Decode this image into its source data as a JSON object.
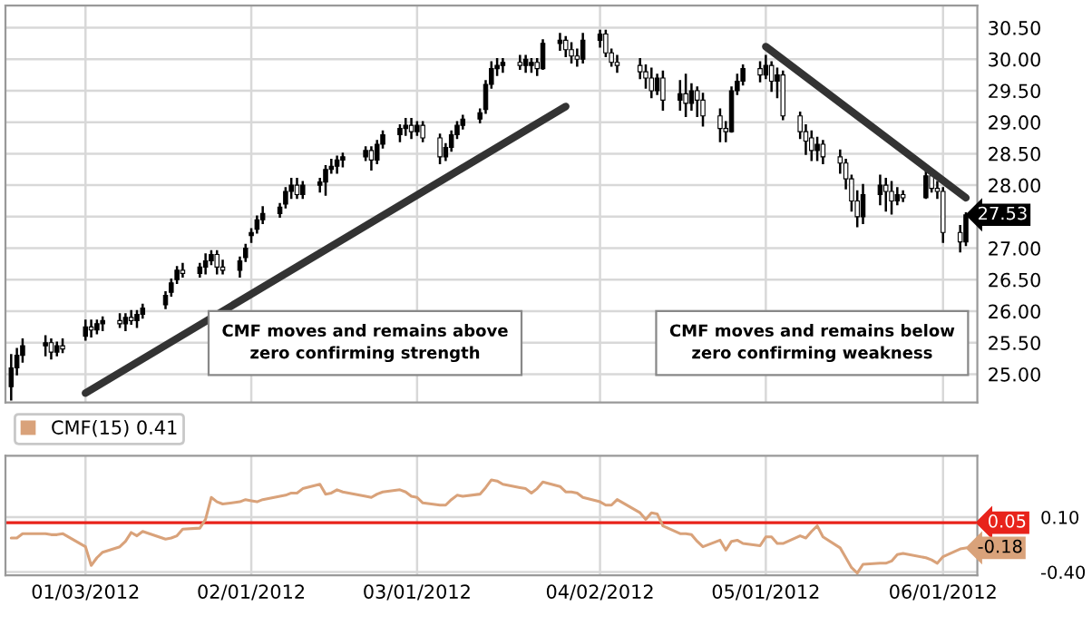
{
  "chart_data": [
    {
      "type": "candlestick",
      "x": [
        "2011-12-21",
        "2011-12-22",
        "2011-12-23",
        "2011-12-27",
        "2011-12-28",
        "2011-12-29",
        "2011-12-30",
        "2012-01-03",
        "2012-01-04",
        "2012-01-05",
        "2012-01-06",
        "2012-01-09",
        "2012-01-10",
        "2012-01-11",
        "2012-01-12",
        "2012-01-13",
        "2012-01-17",
        "2012-01-18",
        "2012-01-19",
        "2012-01-20",
        "2012-01-23",
        "2012-01-24",
        "2012-01-25",
        "2012-01-26",
        "2012-01-27",
        "2012-01-30",
        "2012-01-31",
        "2012-02-01",
        "2012-02-02",
        "2012-02-03",
        "2012-02-06",
        "2012-02-07",
        "2012-02-08",
        "2012-02-09",
        "2012-02-10",
        "2012-02-13",
        "2012-02-14",
        "2012-02-15",
        "2012-02-16",
        "2012-02-17",
        "2012-02-21",
        "2012-02-22",
        "2012-02-23",
        "2012-02-24",
        "2012-02-27",
        "2012-02-28",
        "2012-02-29",
        "2012-03-01",
        "2012-03-02",
        "2012-03-05",
        "2012-03-06",
        "2012-03-07",
        "2012-03-08",
        "2012-03-09",
        "2012-03-12",
        "2012-03-13",
        "2012-03-14",
        "2012-03-15",
        "2012-03-16",
        "2012-03-19",
        "2012-03-20",
        "2012-03-21",
        "2012-03-22",
        "2012-03-23",
        "2012-03-26",
        "2012-03-27",
        "2012-03-28",
        "2012-03-29",
        "2012-03-30",
        "2012-04-02",
        "2012-04-03",
        "2012-04-04",
        "2012-04-05",
        "2012-04-09",
        "2012-04-10",
        "2012-04-11",
        "2012-04-12",
        "2012-04-13",
        "2012-04-16",
        "2012-04-17",
        "2012-04-18",
        "2012-04-19",
        "2012-04-20",
        "2012-04-23",
        "2012-04-24",
        "2012-04-25",
        "2012-04-26",
        "2012-04-27",
        "2012-04-30",
        "2012-05-01",
        "2012-05-02",
        "2012-05-03",
        "2012-05-04",
        "2012-05-07",
        "2012-05-08",
        "2012-05-09",
        "2012-05-10",
        "2012-05-11",
        "2012-05-14",
        "2012-05-15",
        "2012-05-16",
        "2012-05-17",
        "2012-05-18",
        "2012-05-21",
        "2012-05-22",
        "2012-05-23",
        "2012-05-24",
        "2012-05-25",
        "2012-05-29",
        "2012-05-30",
        "2012-05-31",
        "2012-06-01",
        "2012-06-04",
        "2012-06-05"
      ],
      "ohlc": [
        [
          24.8,
          25.3,
          24.6,
          25.1
        ],
        [
          25.1,
          25.4,
          25.0,
          25.3
        ],
        [
          25.3,
          25.55,
          25.2,
          25.45
        ],
        [
          25.45,
          25.6,
          25.3,
          25.5
        ],
        [
          25.5,
          25.55,
          25.25,
          25.35
        ],
        [
          25.35,
          25.5,
          25.3,
          25.45
        ],
        [
          25.45,
          25.55,
          25.35,
          25.4
        ],
        [
          25.6,
          25.85,
          25.55,
          25.75
        ],
        [
          25.75,
          25.85,
          25.6,
          25.7
        ],
        [
          25.7,
          25.85,
          25.65,
          25.8
        ],
        [
          25.8,
          25.9,
          25.7,
          25.85
        ],
        [
          25.85,
          25.95,
          25.75,
          25.8
        ],
        [
          25.8,
          25.95,
          25.7,
          25.9
        ],
        [
          25.9,
          26.0,
          25.8,
          25.85
        ],
        [
          25.85,
          26.0,
          25.75,
          25.95
        ],
        [
          25.95,
          26.1,
          25.9,
          26.05
        ],
        [
          26.1,
          26.3,
          26.05,
          26.25
        ],
        [
          26.3,
          26.5,
          26.25,
          26.45
        ],
        [
          26.5,
          26.7,
          26.45,
          26.65
        ],
        [
          26.65,
          26.75,
          26.55,
          26.6
        ],
        [
          26.6,
          26.75,
          26.55,
          26.7
        ],
        [
          26.7,
          26.9,
          26.6,
          26.8
        ],
        [
          26.8,
          26.95,
          26.75,
          26.9
        ],
        [
          26.9,
          26.95,
          26.6,
          26.7
        ],
        [
          26.7,
          26.8,
          26.6,
          26.65
        ],
        [
          26.65,
          26.85,
          26.55,
          26.8
        ],
        [
          26.85,
          27.05,
          26.8,
          27.0
        ],
        [
          27.2,
          27.3,
          27.1,
          27.25
        ],
        [
          27.3,
          27.5,
          27.25,
          27.45
        ],
        [
          27.45,
          27.65,
          27.4,
          27.55
        ],
        [
          27.55,
          27.7,
          27.5,
          27.65
        ],
        [
          27.7,
          27.95,
          27.65,
          27.9
        ],
        [
          27.9,
          28.1,
          27.8,
          28.0
        ],
        [
          28.0,
          28.1,
          27.8,
          27.85
        ],
        [
          27.85,
          28.05,
          27.8,
          28.0
        ],
        [
          28.0,
          28.1,
          27.9,
          28.05
        ],
        [
          28.05,
          28.3,
          27.85,
          28.25
        ],
        [
          28.25,
          28.4,
          28.2,
          28.3
        ],
        [
          28.3,
          28.45,
          28.2,
          28.4
        ],
        [
          28.4,
          28.5,
          28.3,
          28.45
        ],
        [
          28.45,
          28.6,
          28.4,
          28.55
        ],
        [
          28.55,
          28.6,
          28.25,
          28.4
        ],
        [
          28.4,
          28.7,
          28.35,
          28.65
        ],
        [
          28.65,
          28.85,
          28.6,
          28.8
        ],
        [
          28.8,
          28.95,
          28.7,
          28.9
        ],
        [
          28.9,
          29.05,
          28.8,
          28.95
        ],
        [
          28.95,
          29.05,
          28.75,
          28.85
        ],
        [
          28.85,
          29.0,
          28.8,
          28.95
        ],
        [
          28.95,
          29.0,
          28.7,
          28.75
        ],
        [
          28.75,
          28.8,
          28.35,
          28.45
        ],
        [
          28.45,
          28.65,
          28.4,
          28.6
        ],
        [
          28.6,
          28.85,
          28.55,
          28.8
        ],
        [
          28.8,
          29.0,
          28.75,
          28.95
        ],
        [
          28.95,
          29.1,
          28.9,
          29.05
        ],
        [
          29.05,
          29.2,
          29.0,
          29.15
        ],
        [
          29.2,
          29.65,
          29.15,
          29.6
        ],
        [
          29.6,
          29.95,
          29.55,
          29.85
        ],
        [
          29.85,
          30.0,
          29.75,
          29.9
        ],
        [
          29.9,
          30.0,
          29.8,
          29.95
        ],
        [
          29.95,
          30.05,
          29.85,
          29.9
        ],
        [
          29.9,
          30.05,
          29.8,
          30.0
        ],
        [
          29.9,
          30.0,
          29.8,
          29.95
        ],
        [
          29.95,
          30.0,
          29.75,
          29.85
        ],
        [
          29.85,
          30.3,
          29.85,
          30.25
        ],
        [
          30.25,
          30.4,
          30.15,
          30.3
        ],
        [
          30.3,
          30.35,
          30.05,
          30.15
        ],
        [
          30.15,
          30.25,
          29.95,
          30.05
        ],
        [
          30.05,
          30.15,
          29.9,
          30.0
        ],
        [
          30.0,
          30.4,
          29.95,
          30.3
        ],
        [
          30.3,
          30.45,
          30.2,
          30.4
        ],
        [
          30.4,
          30.45,
          30.05,
          30.1
        ],
        [
          30.1,
          30.15,
          29.9,
          29.95
        ],
        [
          29.95,
          30.05,
          29.8,
          29.9
        ],
        [
          29.9,
          30.0,
          29.7,
          29.8
        ],
        [
          29.8,
          29.9,
          29.55,
          29.7
        ],
        [
          29.7,
          29.85,
          29.4,
          29.5
        ],
        [
          29.5,
          29.75,
          29.45,
          29.7
        ],
        [
          29.7,
          29.8,
          29.2,
          29.35
        ],
        [
          29.35,
          29.65,
          29.2,
          29.45
        ],
        [
          29.45,
          29.75,
          29.1,
          29.3
        ],
        [
          29.3,
          29.6,
          29.2,
          29.5
        ],
        [
          29.5,
          29.55,
          29.1,
          29.35
        ],
        [
          29.35,
          29.45,
          28.95,
          29.1
        ],
        [
          29.1,
          29.2,
          28.7,
          28.9
        ],
        [
          28.9,
          29.0,
          28.7,
          28.85
        ],
        [
          28.85,
          29.55,
          28.85,
          29.5
        ],
        [
          29.5,
          29.75,
          29.45,
          29.65
        ],
        [
          29.65,
          29.9,
          29.6,
          29.85
        ],
        [
          29.85,
          29.95,
          29.65,
          29.75
        ],
        [
          29.75,
          30.05,
          29.7,
          29.9
        ],
        [
          29.9,
          29.95,
          29.5,
          29.65
        ],
        [
          29.65,
          29.85,
          29.4,
          29.75
        ],
        [
          29.75,
          29.8,
          29.05,
          29.1
        ],
        [
          29.1,
          29.15,
          28.75,
          28.85
        ],
        [
          28.85,
          28.95,
          28.5,
          28.7
        ],
        [
          28.75,
          28.85,
          28.4,
          28.55
        ],
        [
          28.55,
          28.75,
          28.4,
          28.65
        ],
        [
          28.65,
          28.7,
          28.35,
          28.45
        ],
        [
          28.45,
          28.55,
          28.2,
          28.35
        ],
        [
          28.35,
          28.4,
          27.95,
          28.1
        ],
        [
          28.1,
          28.15,
          27.6,
          27.75
        ],
        [
          27.75,
          27.9,
          27.35,
          27.5
        ],
        [
          27.5,
          28.0,
          27.4,
          27.85
        ],
        [
          27.85,
          28.15,
          27.7,
          28.0
        ],
        [
          28.0,
          28.1,
          27.6,
          27.9
        ],
        [
          27.9,
          28.05,
          27.55,
          27.75
        ],
        [
          27.75,
          27.95,
          27.7,
          27.85
        ],
        [
          27.85,
          27.9,
          27.75,
          27.8
        ],
        [
          27.8,
          28.25,
          27.8,
          28.15
        ],
        [
          28.15,
          28.2,
          27.9,
          27.95
        ],
        [
          27.95,
          28.05,
          27.8,
          27.9
        ],
        [
          27.9,
          27.95,
          27.1,
          27.25
        ],
        [
          27.25,
          27.35,
          26.95,
          27.1
        ],
        [
          27.1,
          27.55,
          27.05,
          27.53
        ]
      ],
      "series": [
        {
          "type": "line",
          "x": [
            "2012-01-03",
            "2012-03-27"
          ],
          "values": [
            24.7,
            29.25
          ],
          "color": "#333333"
        },
        {
          "type": "line",
          "x": [
            "2012-05-01",
            "2012-06-05"
          ],
          "values": [
            30.2,
            27.8
          ],
          "color": "#333333"
        }
      ],
      "annotations": [
        "CMF moves and remains above\nzero confirming strength",
        "CMF moves and remains below\nzero confirming weakness",
        {
          "text": "27.53",
          "x": "2012-06-05",
          "y": 27.53
        }
      ],
      "xlim": [
        "2011-12-20",
        "2012-06-07"
      ],
      "xticks": [
        {
          "value": "2012-01-03",
          "label": null
        },
        {
          "value": "2012-02-01",
          "label": null
        },
        {
          "value": "2012-03-01",
          "label": null
        },
        {
          "value": "2012-04-02",
          "label": null
        },
        {
          "value": "2012-05-01",
          "label": null
        },
        {
          "value": "2012-06-01",
          "label": null
        }
      ],
      "ylim": [
        24.55,
        30.85
      ],
      "yticks": [
        {
          "value": 25,
          "label": "25.00"
        },
        {
          "value": 25.5,
          "label": "25.50"
        },
        {
          "value": 26,
          "label": "26.00"
        },
        {
          "value": 26.5,
          "label": "26.50"
        },
        {
          "value": 27,
          "label": "27.00"
        },
        {
          "value": 27.5,
          "label": null
        },
        {
          "value": 28,
          "label": "28.00"
        },
        {
          "value": 28.5,
          "label": "28.50"
        },
        {
          "value": 29,
          "label": "29.00"
        },
        {
          "value": 29.5,
          "label": "29.50"
        },
        {
          "value": 30,
          "label": "30.00"
        },
        {
          "value": 30.5,
          "label": "30.50"
        }
      ],
      "tick_labels": "y",
      "grid": true
    },
    {
      "type": "line",
      "x": [
        "2011-12-21",
        "2011-12-22",
        "2011-12-23",
        "2011-12-27",
        "2011-12-28",
        "2011-12-29",
        "2011-12-30",
        "2012-01-03",
        "2012-01-04",
        "2012-01-05",
        "2012-01-06",
        "2012-01-09",
        "2012-01-10",
        "2012-01-11",
        "2012-01-12",
        "2012-01-13",
        "2012-01-17",
        "2012-01-18",
        "2012-01-19",
        "2012-01-20",
        "2012-01-23",
        "2012-01-24",
        "2012-01-25",
        "2012-01-26",
        "2012-01-27",
        "2012-01-30",
        "2012-01-31",
        "2012-02-01",
        "2012-02-02",
        "2012-02-03",
        "2012-02-06",
        "2012-02-07",
        "2012-02-08",
        "2012-02-09",
        "2012-02-10",
        "2012-02-13",
        "2012-02-14",
        "2012-02-15",
        "2012-02-16",
        "2012-02-17",
        "2012-02-21",
        "2012-02-22",
        "2012-02-23",
        "2012-02-24",
        "2012-02-27",
        "2012-02-28",
        "2012-02-29",
        "2012-03-01",
        "2012-03-02",
        "2012-03-05",
        "2012-03-06",
        "2012-03-07",
        "2012-03-08",
        "2012-03-09",
        "2012-03-12",
        "2012-03-13",
        "2012-03-14",
        "2012-03-15",
        "2012-03-16",
        "2012-03-19",
        "2012-03-20",
        "2012-03-21",
        "2012-03-22",
        "2012-03-23",
        "2012-03-26",
        "2012-03-27",
        "2012-03-28",
        "2012-03-29",
        "2012-03-30",
        "2012-04-02",
        "2012-04-03",
        "2012-04-04",
        "2012-04-05",
        "2012-04-09",
        "2012-04-10",
        "2012-04-11",
        "2012-04-12",
        "2012-04-13",
        "2012-04-16",
        "2012-04-17",
        "2012-04-18",
        "2012-04-19",
        "2012-04-20",
        "2012-04-23",
        "2012-04-24",
        "2012-04-25",
        "2012-04-26",
        "2012-04-27",
        "2012-04-30",
        "2012-05-01",
        "2012-05-02",
        "2012-05-03",
        "2012-05-04",
        "2012-05-07",
        "2012-05-08",
        "2012-05-09",
        "2012-05-10",
        "2012-05-11",
        "2012-05-14",
        "2012-05-15",
        "2012-05-16",
        "2012-05-17",
        "2012-05-18",
        "2012-05-21",
        "2012-05-22",
        "2012-05-23",
        "2012-05-24",
        "2012-05-25",
        "2012-05-29",
        "2012-05-30",
        "2012-05-31",
        "2012-06-01",
        "2012-06-04",
        "2012-06-05"
      ],
      "series": [
        {
          "name": "CMF(15) 0.41",
          "color": "#d9a27a",
          "values": [
            -0.09,
            -0.09,
            -0.05,
            -0.05,
            -0.06,
            -0.06,
            -0.05,
            -0.17,
            -0.34,
            -0.27,
            -0.22,
            -0.17,
            -0.12,
            -0.04,
            -0.07,
            -0.03,
            -0.1,
            -0.09,
            -0.07,
            -0.01,
            0.0,
            0.08,
            0.28,
            0.24,
            0.22,
            0.24,
            0.26,
            0.25,
            0.24,
            0.26,
            0.29,
            0.3,
            0.32,
            0.32,
            0.36,
            0.4,
            0.31,
            0.32,
            0.35,
            0.33,
            0.29,
            0.28,
            0.31,
            0.33,
            0.35,
            0.33,
            0.29,
            0.28,
            0.23,
            0.21,
            0.21,
            0.26,
            0.3,
            0.29,
            0.31,
            0.37,
            0.44,
            0.43,
            0.4,
            0.37,
            0.36,
            0.32,
            0.36,
            0.42,
            0.38,
            0.33,
            0.33,
            0.32,
            0.28,
            0.24,
            0.21,
            0.21,
            0.26,
            0.14,
            0.08,
            0.14,
            0.13,
            0.02,
            -0.05,
            -0.05,
            -0.06,
            -0.12,
            -0.17,
            -0.11,
            -0.2,
            -0.12,
            -0.11,
            -0.14,
            -0.16,
            -0.08,
            -0.08,
            -0.14,
            -0.14,
            -0.07,
            -0.09,
            -0.03,
            0.02,
            -0.08,
            -0.18,
            -0.27,
            -0.36,
            -0.41,
            -0.33,
            -0.32,
            -0.32,
            -0.3,
            -0.24,
            -0.23,
            -0.27,
            -0.29,
            -0.32,
            -0.26,
            -0.19,
            -0.18
          ]
        }
      ],
      "ref_lines": [
        {
          "axis": "y",
          "value": 0.05,
          "label": "0.05",
          "color": "#e8231b"
        }
      ],
      "annotations": [
        {
          "text": "-0.18",
          "x": "2012-06-05",
          "y": -0.18
        }
      ],
      "xlim": [
        "2011-12-20",
        "2012-06-07"
      ],
      "xticks": [
        {
          "value": "2012-01-03",
          "label": "01/03/2012"
        },
        {
          "value": "2012-02-01",
          "label": "02/01/2012"
        },
        {
          "value": "2012-03-01",
          "label": "03/01/2012"
        },
        {
          "value": "2012-04-02",
          "label": "04/02/2012"
        },
        {
          "value": "2012-05-01",
          "label": "05/01/2012"
        },
        {
          "value": "2012-06-01",
          "label": "06/01/2012"
        }
      ],
      "ylim": [
        -0.43,
        0.66
      ],
      "yticks": [
        {
          "value": 0.1,
          "label": "0.10"
        },
        {
          "value": -0.4,
          "label": "-0.40"
        }
      ],
      "legend": "top left",
      "grid": true
    }
  ]
}
